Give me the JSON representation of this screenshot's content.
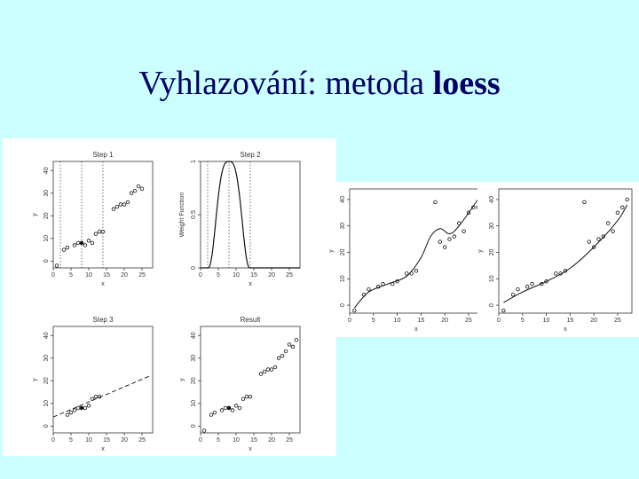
{
  "title": {
    "normal": "Vyhlazování: metoda",
    "bold": "loess"
  },
  "colors": {
    "background": "#ccffff",
    "title": "#000066",
    "panel": "#ffffff",
    "ink": "#333333"
  },
  "chart_data": [
    {
      "id": "step1",
      "type": "scatter",
      "title": "Step 1",
      "xlabel": "x",
      "ylabel": "y",
      "xlim": [
        0,
        28
      ],
      "ylim": [
        -3,
        44
      ],
      "xticks": [
        0,
        5,
        10,
        15,
        20,
        25
      ],
      "yticks": [
        0,
        10,
        20,
        30,
        40
      ],
      "points": [
        [
          1,
          -2
        ],
        [
          3,
          5
        ],
        [
          4,
          6
        ],
        [
          6,
          7
        ],
        [
          7,
          8
        ],
        [
          8,
          8
        ],
        [
          9,
          7
        ],
        [
          10,
          9
        ],
        [
          11,
          8
        ],
        [
          12,
          12
        ],
        [
          13,
          13
        ],
        [
          14,
          13
        ],
        [
          17,
          23
        ],
        [
          18,
          24
        ],
        [
          19,
          25
        ],
        [
          20,
          25
        ],
        [
          21,
          26
        ],
        [
          22,
          30
        ],
        [
          23,
          31
        ],
        [
          24,
          33
        ],
        [
          25,
          32
        ]
      ],
      "highlight": [
        8,
        8
      ],
      "vlines": [
        {
          "x": 2,
          "style": "dotted"
        },
        {
          "x": 8,
          "style": "dotted"
        },
        {
          "x": 14,
          "style": "dotted"
        }
      ]
    },
    {
      "id": "step2",
      "type": "line",
      "title": "Step 2",
      "xlabel": "x",
      "ylabel": "Weight Function",
      "xlim": [
        0,
        28
      ],
      "ylim": [
        0,
        1
      ],
      "xticks": [
        0,
        5,
        10,
        15,
        20,
        25
      ],
      "yticks": [
        0.0,
        0.5,
        1.0
      ],
      "curve": {
        "kind": "tricube",
        "center": 8,
        "halfwidth": 6
      },
      "vlines": [
        {
          "x": 2,
          "style": "dotted"
        },
        {
          "x": 8,
          "style": "dotted"
        },
        {
          "x": 14,
          "style": "dotted"
        }
      ]
    },
    {
      "id": "step3",
      "type": "scatter",
      "title": "Step 3",
      "xlabel": "x",
      "ylabel": "y",
      "xlim": [
        0,
        28
      ],
      "ylim": [
        -3,
        44
      ],
      "xticks": [
        0,
        5,
        10,
        15,
        20,
        25
      ],
      "yticks": [
        0,
        10,
        20,
        30,
        40
      ],
      "points": [
        [
          4,
          5
        ],
        [
          5,
          6
        ],
        [
          6,
          7
        ],
        [
          7,
          8
        ],
        [
          8,
          8
        ],
        [
          9,
          8
        ],
        [
          10,
          9
        ],
        [
          11,
          12
        ],
        [
          12,
          13
        ],
        [
          13,
          13
        ]
      ],
      "highlight": [
        8,
        8
      ],
      "fit_line": {
        "x": [
          0,
          27
        ],
        "y": [
          4,
          22
        ],
        "style": "dashed"
      }
    },
    {
      "id": "result",
      "type": "scatter",
      "title": "Result",
      "xlabel": "x",
      "ylabel": "y",
      "xlim": [
        0,
        28
      ],
      "ylim": [
        -3,
        44
      ],
      "xticks": [
        0,
        5,
        10,
        15,
        20,
        25
      ],
      "yticks": [
        0,
        10,
        20,
        30,
        40
      ],
      "points": [
        [
          1,
          -2
        ],
        [
          3,
          5
        ],
        [
          4,
          6
        ],
        [
          6,
          7
        ],
        [
          7,
          8
        ],
        [
          8,
          8
        ],
        [
          9,
          7
        ],
        [
          10,
          9
        ],
        [
          11,
          8
        ],
        [
          12,
          12
        ],
        [
          13,
          13
        ],
        [
          14,
          13
        ],
        [
          17,
          23
        ],
        [
          18,
          24
        ],
        [
          19,
          25
        ],
        [
          20,
          25
        ],
        [
          21,
          26
        ],
        [
          22,
          30
        ],
        [
          23,
          31
        ],
        [
          24,
          33
        ],
        [
          25,
          36
        ],
        [
          26,
          35
        ],
        [
          27,
          38
        ]
      ],
      "highlight": [
        8,
        8
      ]
    },
    {
      "id": "mid",
      "type": "scatter",
      "xlabel": "x",
      "ylabel": "y",
      "xlim": [
        0,
        28
      ],
      "ylim": [
        -3,
        44
      ],
      "xticks": [
        0,
        5,
        10,
        15,
        20,
        25
      ],
      "yticks": [
        0,
        10,
        20,
        30,
        40
      ],
      "points": [
        [
          1,
          -2
        ],
        [
          3,
          4
        ],
        [
          4,
          6
        ],
        [
          6,
          7
        ],
        [
          7,
          8
        ],
        [
          9,
          8
        ],
        [
          10,
          9
        ],
        [
          12,
          12
        ],
        [
          13,
          12
        ],
        [
          14,
          13
        ],
        [
          18,
          39
        ],
        [
          19,
          24
        ],
        [
          20,
          22
        ],
        [
          21,
          25
        ],
        [
          22,
          26
        ],
        [
          23,
          31
        ],
        [
          24,
          28
        ],
        [
          25,
          35
        ],
        [
          26,
          37
        ],
        [
          27,
          37
        ]
      ],
      "curve": {
        "x": [
          1,
          4,
          8,
          12,
          15,
          17,
          19,
          21,
          23,
          27
        ],
        "y": [
          -1,
          5,
          8,
          11,
          18,
          26,
          29,
          27,
          30,
          40
        ]
      }
    },
    {
      "id": "right",
      "type": "scatter",
      "xlabel": "x",
      "ylabel": "y",
      "xlim": [
        0,
        28
      ],
      "ylim": [
        -3,
        44
      ],
      "xticks": [
        0,
        5,
        10,
        15,
        20,
        25
      ],
      "yticks": [
        0,
        10,
        20,
        30,
        40
      ],
      "points": [
        [
          1,
          -2
        ],
        [
          3,
          4
        ],
        [
          4,
          6
        ],
        [
          6,
          7
        ],
        [
          7,
          8
        ],
        [
          9,
          8
        ],
        [
          10,
          9
        ],
        [
          12,
          12
        ],
        [
          13,
          12
        ],
        [
          14,
          13
        ],
        [
          18,
          39
        ],
        [
          19,
          24
        ],
        [
          20,
          22
        ],
        [
          21,
          25
        ],
        [
          22,
          26
        ],
        [
          23,
          31
        ],
        [
          24,
          28
        ],
        [
          25,
          35
        ],
        [
          26,
          37
        ],
        [
          27,
          40
        ]
      ],
      "curve": {
        "x": [
          1,
          5,
          10,
          15,
          20,
          25,
          27
        ],
        "y": [
          1,
          5,
          9,
          14,
          22,
          32,
          38
        ]
      }
    }
  ]
}
